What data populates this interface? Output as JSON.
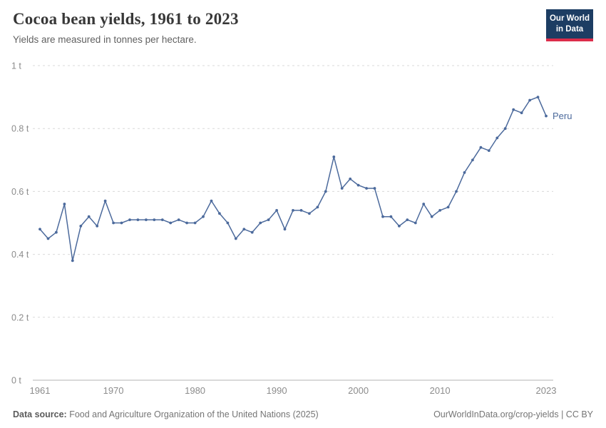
{
  "header": {
    "title": "Cocoa bean yields, 1961 to 2023",
    "subtitle": "Yields are measured in tonnes per hectare.",
    "logo": {
      "line1": "Our World",
      "line2": "in Data"
    }
  },
  "footer": {
    "source_label": "Data source:",
    "source_text": " Food and Agriculture Organization of the United Nations (2025)",
    "credit": "OurWorldInData.org/crop-yields | CC BY"
  },
  "colors": {
    "series": "#4C6A9C",
    "grid": "#d9d9d9",
    "axis": "#b3b3b3",
    "tick_label": "#8c8c8c",
    "logo_bg": "#1d3d63",
    "logo_accent": "#dc2c4a"
  },
  "chart_data": {
    "type": "line",
    "title": "Cocoa bean yields, 1961 to 2023",
    "subtitle": "Yields are measured in tonnes per hectare.",
    "unit": "tonnes per hectare",
    "xlabel": "",
    "ylabel": "",
    "ylim": [
      0,
      1
    ],
    "grid": "horizontal-dashed",
    "legend": "end-of-line-label",
    "y_ticks": [
      0,
      0.2,
      0.4,
      0.6,
      0.8,
      1
    ],
    "y_tick_labels": [
      "0 t",
      "0.2 t",
      "0.4 t",
      "0.6 t",
      "0.8 t",
      "1 t"
    ],
    "x_ticks": [
      1961,
      1970,
      1980,
      1990,
      2000,
      2010,
      2023
    ],
    "x": [
      1961,
      1962,
      1963,
      1964,
      1965,
      1966,
      1967,
      1968,
      1969,
      1970,
      1971,
      1972,
      1973,
      1974,
      1975,
      1976,
      1977,
      1978,
      1979,
      1980,
      1981,
      1982,
      1983,
      1984,
      1985,
      1986,
      1987,
      1988,
      1989,
      1990,
      1991,
      1992,
      1993,
      1994,
      1995,
      1996,
      1997,
      1998,
      1999,
      2000,
      2001,
      2002,
      2003,
      2004,
      2005,
      2006,
      2007,
      2008,
      2009,
      2010,
      2011,
      2012,
      2013,
      2014,
      2015,
      2016,
      2017,
      2018,
      2019,
      2020,
      2021,
      2022,
      2023
    ],
    "series": [
      {
        "name": "Peru",
        "color": "#4C6A9C",
        "values": [
          0.48,
          0.45,
          0.47,
          0.56,
          0.38,
          0.49,
          0.52,
          0.49,
          0.57,
          0.5,
          0.5,
          0.51,
          0.51,
          0.51,
          0.51,
          0.51,
          0.5,
          0.51,
          0.5,
          0.5,
          0.52,
          0.57,
          0.53,
          0.5,
          0.45,
          0.48,
          0.47,
          0.5,
          0.51,
          0.54,
          0.48,
          0.54,
          0.54,
          0.53,
          0.55,
          0.6,
          0.71,
          0.61,
          0.64,
          0.62,
          0.61,
          0.61,
          0.52,
          0.52,
          0.49,
          0.51,
          0.5,
          0.56,
          0.52,
          0.54,
          0.55,
          0.6,
          0.66,
          0.7,
          0.74,
          0.73,
          0.77,
          0.8,
          0.86,
          0.85,
          0.89,
          0.9,
          0.84
        ]
      }
    ]
  }
}
